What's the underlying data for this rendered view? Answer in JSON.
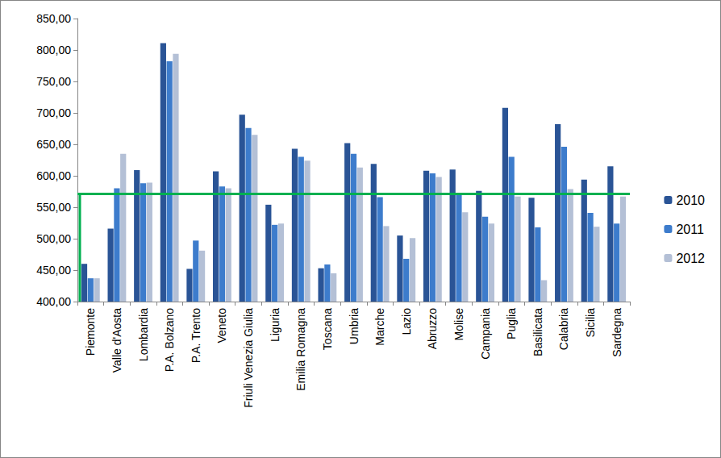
{
  "chart_data": {
    "type": "bar",
    "categories": [
      "Piemonte",
      "Valle d'Aosta",
      "Lombardia",
      "P.A. Bolzano",
      "P.A. Trento",
      "Veneto",
      "Friuli Venezia Giulia",
      "Liguria",
      "Emilia Romagna",
      "Toscana",
      "Umbria",
      "Marche",
      "Lazio",
      "Abruzzo",
      "Molise",
      "Campania",
      "Puglia",
      "Basilicata",
      "Calabria",
      "Sicilia",
      "Sardegna"
    ],
    "series": [
      {
        "name": "2010",
        "color": "#2a5496",
        "values": [
          460,
          516,
          609,
          811,
          452,
          607,
          697,
          554,
          643,
          453,
          652,
          619,
          505,
          608,
          610,
          576,
          708,
          565,
          682,
          594,
          615
        ]
      },
      {
        "name": "2011",
        "color": "#3d7ccc",
        "values": [
          437,
          580,
          588,
          782,
          497,
          583,
          676,
          522,
          630,
          459,
          635,
          566,
          468,
          604,
          571,
          535,
          630,
          518,
          646,
          541,
          524
        ]
      },
      {
        "name": "2012",
        "color": "#b4c0d6",
        "values": [
          437,
          635,
          589,
          794,
          481,
          580,
          665,
          524,
          624,
          445,
          613,
          520,
          501,
          598,
          542,
          524,
          567,
          434,
          579,
          519,
          567
        ]
      }
    ],
    "reference_line": {
      "value": 572,
      "color": "#00b050"
    },
    "ylim": [
      400,
      850
    ],
    "yticks": [
      {
        "value": 400,
        "label": "400,00"
      },
      {
        "value": 450,
        "label": "450,00"
      },
      {
        "value": 500,
        "label": "500,00"
      },
      {
        "value": 550,
        "label": "550,00"
      },
      {
        "value": 600,
        "label": "600,00"
      },
      {
        "value": 650,
        "label": "650,00"
      },
      {
        "value": 700,
        "label": "700,00"
      },
      {
        "value": 750,
        "label": "750,00"
      },
      {
        "value": 800,
        "label": "800,00"
      },
      {
        "value": 850,
        "label": "850,00"
      }
    ],
    "grid": false,
    "legend": "right"
  }
}
